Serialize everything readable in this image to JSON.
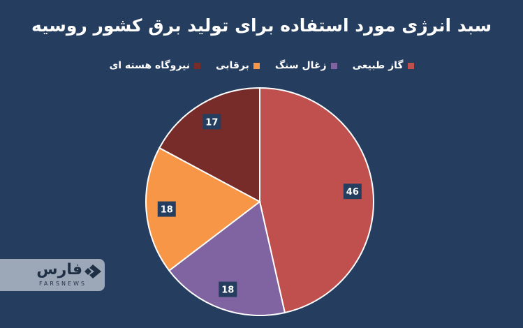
{
  "chart_data": {
    "type": "pie",
    "title": "سبد انرژی مورد استفاده برای تولید برق کشور روسیه",
    "slices": [
      {
        "label": "گاز طبیعی",
        "value": 46,
        "color": "#c0504d"
      },
      {
        "label": "زغال سنگ",
        "value": 18,
        "color": "#8064a2"
      },
      {
        "label": "برقابی",
        "value": 18,
        "color": "#f79646"
      },
      {
        "label": "نیروگاه هسته ای",
        "value": 17,
        "color": "#772c2a"
      }
    ],
    "legend_position": "top"
  },
  "watermark": {
    "brand": "فارس",
    "sub": "FARSNEWS"
  }
}
